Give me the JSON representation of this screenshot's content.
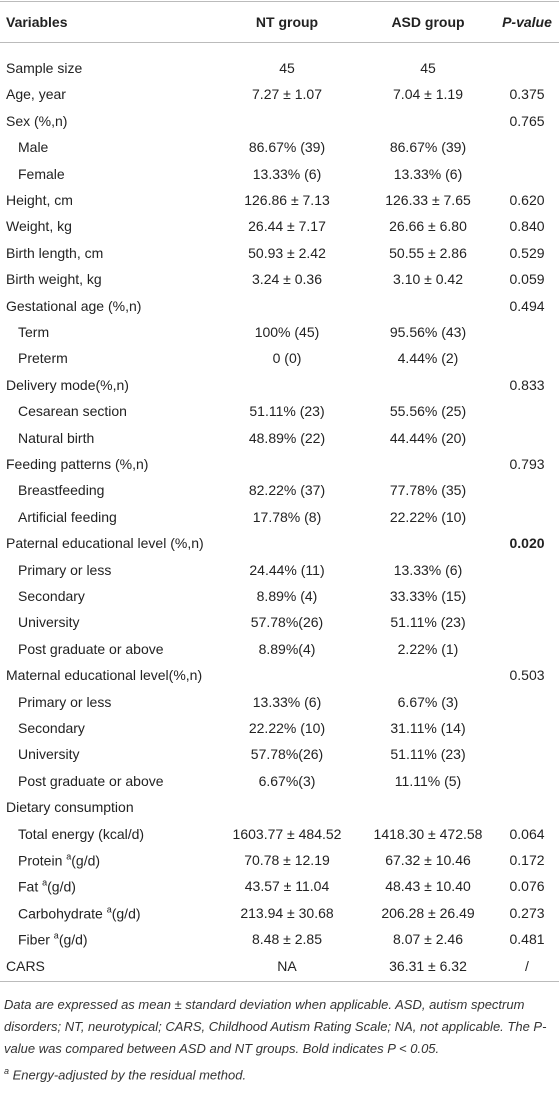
{
  "table": {
    "header": [
      "Variables",
      "NT group",
      "ASD group",
      "P-value"
    ],
    "rows": [
      {
        "label": "Sample size",
        "nt": "45",
        "asd": "45"
      },
      {
        "label": "Age, year",
        "nt": "7.27 ± 1.07",
        "asd": "7.04 ± 1.19",
        "p": "0.375"
      },
      {
        "label": "Sex (%,n)",
        "p": "0.765"
      },
      {
        "label": "Male",
        "indent": true,
        "nt": "86.67% (39)",
        "asd": "86.67% (39)"
      },
      {
        "label": "Female",
        "indent": true,
        "nt": "13.33% (6)",
        "asd": "13.33% (6)"
      },
      {
        "label": "Height, cm",
        "nt": "126.86 ± 7.13",
        "asd": "126.33 ± 7.65",
        "p": "0.620"
      },
      {
        "label": "Weight, kg",
        "nt": "26.44 ± 7.17",
        "asd": "26.66 ± 6.80",
        "p": "0.840"
      },
      {
        "label": "Birth length, cm",
        "nt": "50.93 ± 2.42",
        "asd": "50.55 ± 2.86",
        "p": "0.529"
      },
      {
        "label": "Birth weight, kg",
        "nt": "3.24 ± 0.36",
        "asd": "3.10 ± 0.42",
        "p": "0.059"
      },
      {
        "label": "Gestational age (%,n)",
        "p": "0.494"
      },
      {
        "label": "Term",
        "indent": true,
        "nt": "100% (45)",
        "asd": "95.56% (43)"
      },
      {
        "label": "Preterm",
        "indent": true,
        "nt": "0 (0)",
        "asd": "4.44% (2)"
      },
      {
        "label": "Delivery mode(%,n)",
        "p": "0.833"
      },
      {
        "label": "Cesarean section",
        "indent": true,
        "nt": "51.11% (23)",
        "asd": "55.56% (25)"
      },
      {
        "label": "Natural birth",
        "indent": true,
        "nt": "48.89% (22)",
        "asd": "44.44% (20)"
      },
      {
        "label": "Feeding patterns (%,n)",
        "p": "0.793"
      },
      {
        "label": "Breastfeeding",
        "indent": true,
        "nt": "82.22% (37)",
        "asd": "77.78% (35)"
      },
      {
        "label": "Artificial feeding",
        "indent": true,
        "nt": "17.78% (8)",
        "asd": "22.22% (10)"
      },
      {
        "label": "Paternal educational level (%,n)",
        "p": "0.020",
        "bold": true
      },
      {
        "label": "Primary or less",
        "indent": true,
        "nt": "24.44% (11)",
        "asd": "13.33% (6)"
      },
      {
        "label": "Secondary",
        "indent": true,
        "nt": "8.89% (4)",
        "asd": "33.33% (15)"
      },
      {
        "label": "University",
        "indent": true,
        "nt": "57.78%(26)",
        "asd": "51.11% (23)"
      },
      {
        "label": "Post graduate or above",
        "indent": true,
        "nt": "8.89%(4)",
        "asd": "2.22% (1)"
      },
      {
        "label": "Maternal educational level(%,n)",
        "p": "0.503"
      },
      {
        "label": "Primary or less",
        "indent": true,
        "nt": "13.33% (6)",
        "asd": "6.67% (3)"
      },
      {
        "label": "Secondary",
        "indent": true,
        "nt": "22.22% (10)",
        "asd": "31.11% (14)"
      },
      {
        "label": "University",
        "indent": true,
        "nt": "57.78%(26)",
        "asd": "51.11% (23)"
      },
      {
        "label": "Post graduate or above",
        "indent": true,
        "nt": "6.67%(3)",
        "asd": "11.11% (5)"
      },
      {
        "label": "Dietary consumption"
      },
      {
        "label": "Total energy (kcal/d)",
        "indent": true,
        "nt": "1603.77 ± 484.52",
        "asd": "1418.30 ± 472.58",
        "p": "0.064"
      },
      {
        "label": "Protein ",
        "sup": "a",
        "rest": "(g/d)",
        "indent": true,
        "nt": "70.78 ± 12.19",
        "asd": "67.32 ± 10.46",
        "p": "0.172"
      },
      {
        "label": "Fat ",
        "sup": "a",
        "rest": "(g/d)",
        "indent": true,
        "nt": "43.57 ± 11.04",
        "asd": "48.43 ± 10.40",
        "p": "0.076"
      },
      {
        "label": "Carbohydrate ",
        "sup": "a",
        "rest": "(g/d)",
        "indent": true,
        "nt": "213.94 ± 30.68",
        "asd": "206.28 ± 26.49",
        "p": "0.273"
      },
      {
        "label": "Fiber ",
        "sup": "a",
        "rest": "(g/d)",
        "indent": true,
        "nt": "8.48 ± 2.85",
        "asd": "8.07 ± 2.46",
        "p": "0.481"
      },
      {
        "label": "CARS",
        "nt": "NA",
        "asd": "36.31 ± 6.32",
        "p": "/"
      }
    ]
  },
  "footnote": {
    "text": "Data are expressed as mean ± standard deviation when applicable. ASD, autism spectrum disorders; NT, neurotypical; CARS, Childhood Autism Rating Scale; NA, not applicable. The P-value was compared between ASD and NT groups. Bold indicates P < 0.05.",
    "sup": "a",
    "note": "Energy-adjusted by the residual method."
  }
}
